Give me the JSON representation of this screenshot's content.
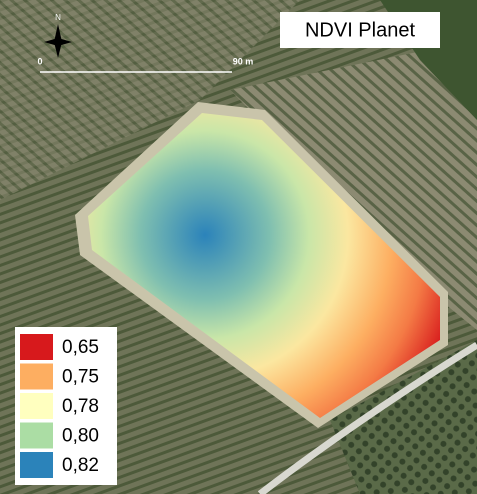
{
  "map": {
    "title": "NDVI Planet",
    "north_label": "N",
    "scale": {
      "start_label": "0",
      "end_label": "90 m"
    },
    "legend": [
      {
        "label": "0,65",
        "color": "#d7191c"
      },
      {
        "label": "0,75",
        "color": "#fdae61"
      },
      {
        "label": "0,78",
        "color": "#ffffbf"
      },
      {
        "label": "0,80",
        "color": "#abdda4"
      },
      {
        "label": "0,82",
        "color": "#2b83ba"
      }
    ]
  }
}
